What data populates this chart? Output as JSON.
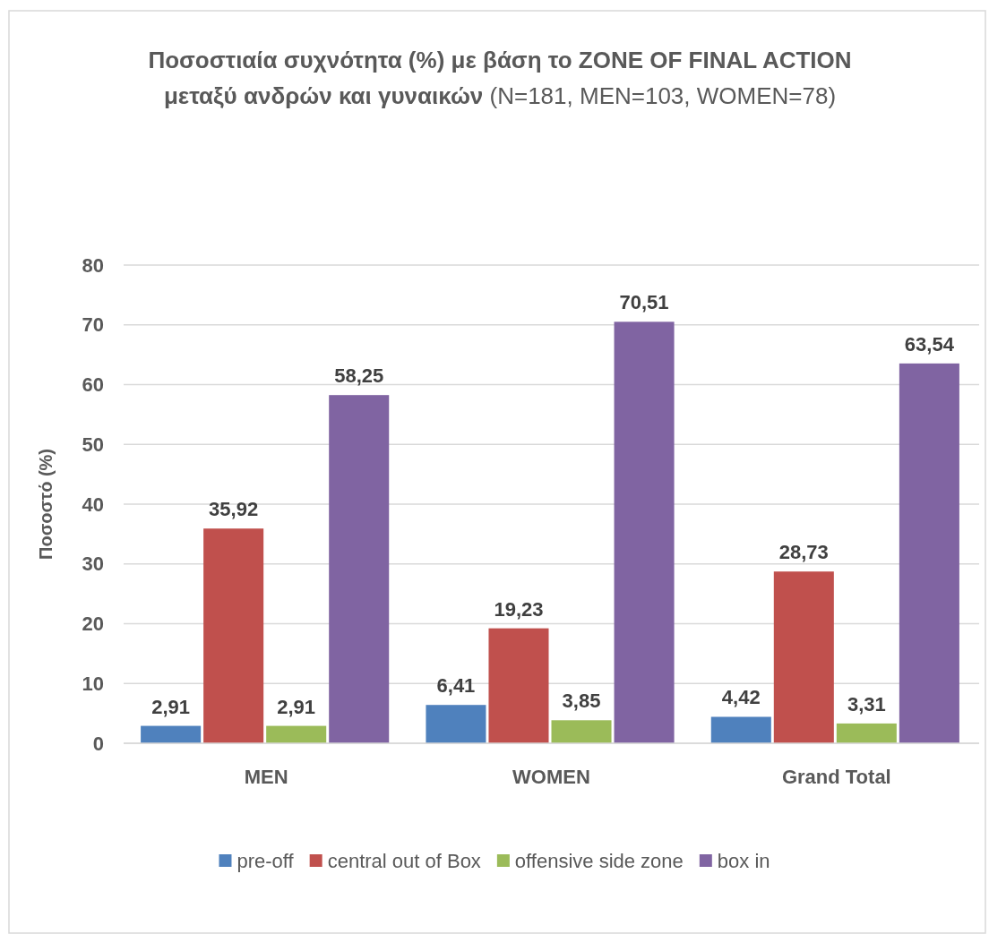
{
  "chart_data": {
    "type": "bar",
    "title": "Ποσοστιαία συχνότητα (%) με βάση το ZONE OF FINAL ACTION μεταξύ ανδρών και γυναικών",
    "subtitle": "(N=181, MEN=103, WOMEN=78)",
    "ylabel": "Ποσοστό (%)",
    "categories": [
      "MEN",
      "WOMEN",
      "Grand Total"
    ],
    "series": [
      {
        "name": "pre-off",
        "color": "#4f81bd",
        "values": [
          2.91,
          6.41,
          4.42
        ],
        "value_labels": [
          "2,91",
          "6,41",
          "4,42"
        ]
      },
      {
        "name": "central out of Box",
        "color": "#c0504d",
        "values": [
          35.92,
          19.23,
          28.73
        ],
        "value_labels": [
          "35,92",
          "19,23",
          "28,73"
        ]
      },
      {
        "name": "offensive side zone",
        "color": "#9bbb59",
        "values": [
          2.91,
          3.85,
          3.31
        ],
        "value_labels": [
          "2,91",
          "3,85",
          "3,31"
        ]
      },
      {
        "name": "box in",
        "color": "#8064a2",
        "values": [
          58.25,
          70.51,
          63.54
        ],
        "value_labels": [
          "58,25",
          "70,51",
          "63,54"
        ]
      }
    ],
    "ylim": [
      0,
      80
    ],
    "yticks": [
      0,
      10,
      20,
      30,
      40,
      50,
      60,
      70,
      80
    ],
    "grid": "y",
    "legend": "bottom"
  }
}
